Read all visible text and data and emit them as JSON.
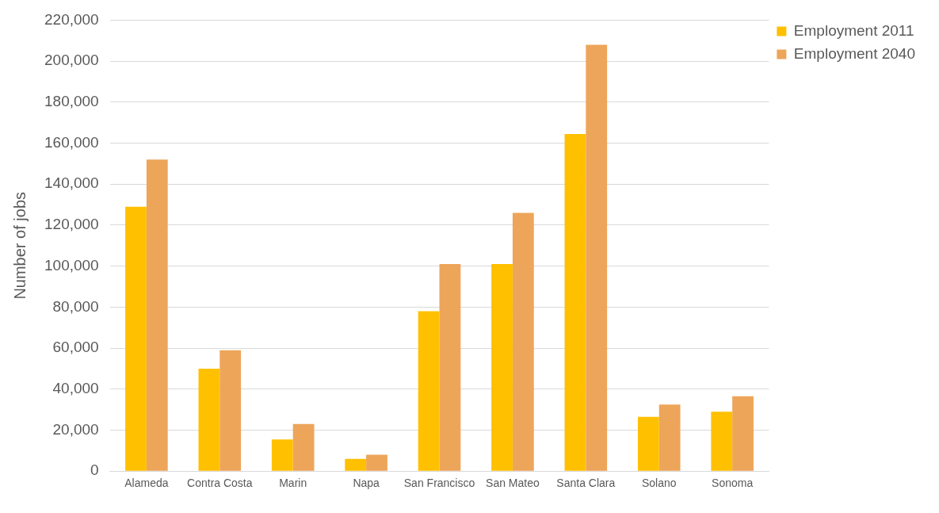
{
  "chart_data": {
    "type": "bar",
    "ylabel": "Number of jobs",
    "categories": [
      "Alameda",
      "Contra Costa",
      "Marin",
      "Napa",
      "San Francisco",
      "San Mateo",
      "Santa Clara",
      "Solano",
      "Sonoma"
    ],
    "series": [
      {
        "name": "Employment 2011",
        "color": "#ffc000",
        "values": [
          129000,
          50000,
          15500,
          6000,
          78000,
          101000,
          164500,
          26500,
          29000
        ]
      },
      {
        "name": "Employment 2040",
        "color": "#eda55a",
        "values": [
          152000,
          59000,
          23000,
          8000,
          101000,
          126000,
          208000,
          32500,
          36500
        ]
      }
    ],
    "ylim": [
      0,
      220000
    ],
    "yticks": [
      0,
      {
        "value": 20000,
        "label": "20,000"
      },
      {
        "value": 40000,
        "label": "40,000"
      },
      {
        "value": 60000,
        "label": "60,000"
      },
      {
        "value": 80000,
        "label": "80,000"
      },
      {
        "value": 100000,
        "label": "100,000"
      },
      {
        "value": 120000,
        "label": "120,000"
      },
      {
        "value": 140000,
        "label": "140,000"
      },
      {
        "value": 160000,
        "label": "160,000"
      },
      {
        "value": 180000,
        "label": "180,000"
      },
      {
        "value": 200000,
        "label": "200,000"
      },
      {
        "value": 220000,
        "label": "220,000"
      }
    ],
    "grid": "y",
    "legend": "top right"
  }
}
